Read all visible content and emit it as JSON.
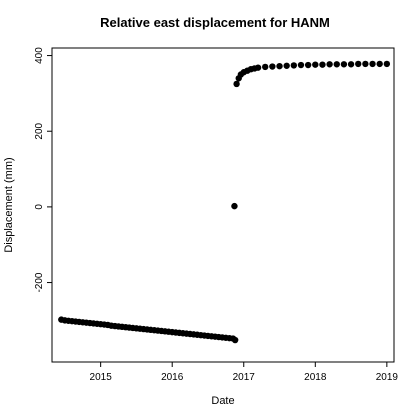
{
  "chart_data": {
    "type": "scatter",
    "title": "Relative east displacement for HANM",
    "xlabel": "Date",
    "ylabel": "Displacement (mm)",
    "x_unit": "year",
    "xlim": [
      2014.32,
      2019.1
    ],
    "ylim": [
      -410,
      420
    ],
    "x_ticks": [
      2015,
      2016,
      2017,
      2018,
      2019
    ],
    "x_tick_labels": [
      "2015",
      "2016",
      "2017",
      "2018",
      "2019"
    ],
    "y_ticks": [
      -200,
      0,
      200,
      400
    ],
    "y_tick_labels": [
      "-200",
      "0",
      "200",
      "400"
    ],
    "grid": false,
    "legend": "none",
    "marker_color": "#000000",
    "series": [
      {
        "x": [
          2014.45,
          2014.5,
          2014.55,
          2014.6,
          2014.65,
          2014.7,
          2014.75,
          2014.8,
          2014.85,
          2014.9,
          2014.95,
          2015.0,
          2015.05,
          2015.1,
          2015.15,
          2015.2,
          2015.25,
          2015.3,
          2015.35,
          2015.4,
          2015.45,
          2015.5,
          2015.55,
          2015.6,
          2015.65,
          2015.7,
          2015.75,
          2015.8,
          2015.85,
          2015.9,
          2015.95,
          2016.0,
          2016.05,
          2016.1,
          2016.15,
          2016.2,
          2016.25,
          2016.3,
          2016.35,
          2016.4,
          2016.45,
          2016.5,
          2016.55,
          2016.6,
          2016.65,
          2016.7,
          2016.75,
          2016.8,
          2016.85,
          2016.88
        ],
        "y": [
          -298,
          -300,
          -301,
          -302,
          -303,
          -304,
          -305,
          -306,
          -307,
          -308,
          -309,
          -310,
          -311,
          -312,
          -314,
          -315,
          -316,
          -317,
          -318,
          -319,
          -320,
          -321,
          -322,
          -323,
          -324,
          -325,
          -326,
          -327,
          -328,
          -329,
          -330,
          -331,
          -332,
          -333,
          -334,
          -335,
          -336,
          -337,
          -338,
          -339,
          -340,
          -341,
          -342,
          -343,
          -344,
          -345,
          -346,
          -347,
          -348,
          -352
        ]
      },
      {
        "x": [
          2016.87
        ],
        "y": [
          2
        ]
      },
      {
        "x": [
          2016.9,
          2016.93,
          2016.96,
          2017.0,
          2017.05,
          2017.1,
          2017.15,
          2017.2,
          2017.3,
          2017.4,
          2017.5,
          2017.6,
          2017.7,
          2017.8,
          2017.9,
          2018.0,
          2018.1,
          2018.2,
          2018.3,
          2018.4,
          2018.5,
          2018.6,
          2018.7,
          2018.8,
          2018.9,
          2019.0
        ],
        "y": [
          325,
          340,
          350,
          356,
          360,
          364,
          366,
          368,
          370,
          371,
          372,
          373,
          374,
          375,
          375,
          376,
          376,
          377,
          377,
          377,
          377,
          378,
          378,
          378,
          378,
          378
        ]
      }
    ]
  }
}
